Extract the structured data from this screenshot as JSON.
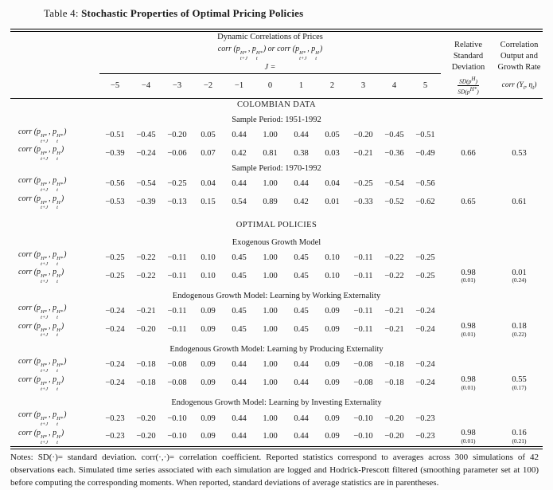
{
  "page": {
    "caption_prefix": "Table 4:",
    "caption_title": "Stochastic Properties of Optimal Pricing Policies"
  },
  "table": {
    "header": {
      "group_title": "Dynamic Correlations of Prices",
      "group_formula": "corr (p_{t+J}^{H*}, p_{t}^{H*}) or corr (p_{t+J}^{H*}, p_{t}^{H})",
      "j_label": "J =",
      "j_values": [
        "−5",
        "−4",
        "−3",
        "−2",
        "−1",
        "0",
        "1",
        "2",
        "3",
        "4",
        "5"
      ],
      "rel_sd_lines": [
        "Relative",
        "Standard",
        "Deviation"
      ],
      "rel_sd_num": "SD(p^{H})",
      "rel_sd_den": "SD(p^{H*})",
      "corr_lines": [
        "Correlation",
        "Output and",
        "Growth Rate"
      ],
      "corr_formula": "corr (Y_{t}, η_{t})"
    },
    "sections": [
      {
        "heading": "COLOMBIAN DATA",
        "style": "major"
      },
      {
        "heading": "Sample Period: 1951-1992",
        "style": "sub gap-s",
        "rows": [
          {
            "label": "corr (p_{t+J}^{H*}, p_{t}^{H*})",
            "values": [
              "−0.51",
              "−0.45",
              "−0.20",
              "0.05",
              "0.44",
              "1.00",
              "0.44",
              "0.05",
              "−0.20",
              "−0.45",
              "−0.51"
            ],
            "sd": "",
            "sd_se": "",
            "corr": "",
            "corr_se": ""
          },
          {
            "label": "corr (p_{t+J}^{H*}, p_{t}^{H})",
            "values": [
              "−0.39",
              "−0.24",
              "−0.06",
              "0.07",
              "0.42",
              "0.81",
              "0.38",
              "0.03",
              "−0.21",
              "−0.36",
              "−0.49"
            ],
            "sd": "0.66",
            "sd_se": "",
            "corr": "0.53",
            "corr_se": ""
          }
        ]
      },
      {
        "heading": "Sample Period: 1970-1992",
        "style": "sub",
        "rows": [
          {
            "label": "corr (p_{t+J}^{H*}, p_{t}^{H*})",
            "values": [
              "−0.56",
              "−0.54",
              "−0.25",
              "0.04",
              "0.44",
              "1.00",
              "0.44",
              "0.04",
              "−0.25",
              "−0.54",
              "−0.56"
            ],
            "sd": "",
            "sd_se": "",
            "corr": "",
            "corr_se": ""
          },
          {
            "label": "corr (p_{t+J}^{H*}, p_{t}^{H})",
            "values": [
              "−0.53",
              "−0.39",
              "−0.13",
              "0.15",
              "0.54",
              "0.89",
              "0.42",
              "0.01",
              "−0.33",
              "−0.52",
              "−0.62"
            ],
            "sd": "0.65",
            "sd_se": "",
            "corr": "0.61",
            "corr_se": ""
          }
        ]
      },
      {
        "heading": "OPTIMAL POLICIES",
        "style": "major gap-l"
      },
      {
        "heading": "Exogenous Growth Model",
        "style": "sub gap-m",
        "rows": [
          {
            "label": "corr (p_{t+J}^{H*}, p_{t}^{H*})",
            "values": [
              "−0.25",
              "−0.22",
              "−0.11",
              "0.10",
              "0.45",
              "1.00",
              "0.45",
              "0.10",
              "−0.11",
              "−0.22",
              "−0.25"
            ],
            "sd": "",
            "sd_se": "",
            "corr": "",
            "corr_se": ""
          },
          {
            "label": "corr (p_{t+J}^{H*}, p_{t}^{H})",
            "values": [
              "−0.25",
              "−0.22",
              "−0.11",
              "0.10",
              "0.45",
              "1.00",
              "0.45",
              "0.10",
              "−0.11",
              "−0.22",
              "−0.25"
            ],
            "sd": "0.98",
            "sd_se": "(0.01)",
            "corr": "0.01",
            "corr_se": "(0.24)"
          }
        ]
      },
      {
        "heading": "Endogenous Growth Model: Learning by Working Externality",
        "style": "sub gap-m",
        "rows": [
          {
            "label": "corr (p_{t+J}^{H*}, p_{t}^{H*})",
            "values": [
              "−0.24",
              "−0.21",
              "−0.11",
              "0.09",
              "0.45",
              "1.00",
              "0.45",
              "0.09",
              "−0.11",
              "−0.21",
              "−0.24"
            ],
            "sd": "",
            "sd_se": "",
            "corr": "",
            "corr_se": ""
          },
          {
            "label": "corr (p_{t+J}^{H*}, p_{t}^{H})",
            "values": [
              "−0.24",
              "−0.20",
              "−0.11",
              "0.09",
              "0.45",
              "1.00",
              "0.45",
              "0.09",
              "−0.11",
              "−0.21",
              "−0.24"
            ],
            "sd": "0.98",
            "sd_se": "(0.01)",
            "corr": "0.18",
            "corr_se": "(0.22)"
          }
        ]
      },
      {
        "heading": "Endogenous Growth Model: Learning by Producing Externality",
        "style": "sub gap-m",
        "rows": [
          {
            "label": "corr (p_{t+J}^{H*}, p_{t}^{H*})",
            "values": [
              "−0.24",
              "−0.18",
              "−0.08",
              "0.09",
              "0.44",
              "1.00",
              "0.44",
              "0.09",
              "−0.08",
              "−0.18",
              "−0.24"
            ],
            "sd": "",
            "sd_se": "",
            "corr": "",
            "corr_se": ""
          },
          {
            "label": "corr (p_{t+J}^{H*}, p_{t}^{H})",
            "values": [
              "−0.24",
              "−0.18",
              "−0.08",
              "0.09",
              "0.44",
              "1.00",
              "0.44",
              "0.09",
              "−0.08",
              "−0.18",
              "−0.24"
            ],
            "sd": "0.98",
            "sd_se": "(0.01)",
            "corr": "0.55",
            "corr_se": "(0.17)"
          }
        ]
      },
      {
        "heading": "Endogenous Growth Model: Learning by Investing Externality",
        "style": "sub gap-m",
        "rows": [
          {
            "label": "corr (p_{t+J}^{H*}, p_{t}^{H*})",
            "values": [
              "−0.23",
              "−0.20",
              "−0.10",
              "0.09",
              "0.44",
              "1.00",
              "0.44",
              "0.09",
              "−0.10",
              "−0.20",
              "−0.23"
            ],
            "sd": "",
            "sd_se": "",
            "corr": "",
            "corr_se": ""
          },
          {
            "label": "corr (p_{t+J}^{H*}, p_{t}^{H})",
            "values": [
              "−0.23",
              "−0.20",
              "−0.10",
              "0.09",
              "0.44",
              "1.00",
              "0.44",
              "0.09",
              "−0.10",
              "−0.20",
              "−0.23"
            ],
            "sd": "0.98",
            "sd_se": "(0.01)",
            "corr": "0.16",
            "corr_se": "(0.21)"
          }
        ]
      }
    ],
    "notes": "Notes: SD(·)= standard deviation. corr(·,·)= correlation coefficient. Reported statistics correspond to averages across 300 simulations of 42 observations each. Simulated time series associated with each simulation are logged and Hodrick-Prescott filtered (smoothing parameter set at 100) before computing the corresponding moments. When reported, standard deviations of average statistics are in parentheses."
  }
}
